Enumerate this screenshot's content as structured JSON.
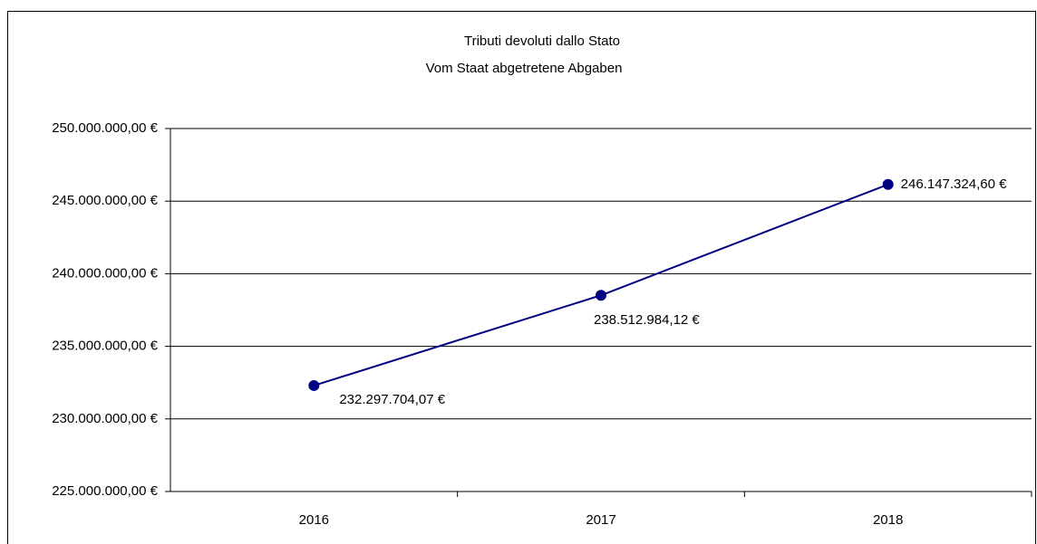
{
  "chart_data": {
    "type": "line",
    "title": "Tributi devoluti dallo Stato",
    "subtitle": "Vom Staat abgetretene Abgaben",
    "categories": [
      "2016",
      "2017",
      "2018"
    ],
    "series": [
      {
        "name": "Tributi devoluti dallo Stato",
        "color": "#000080",
        "values": [
          232297704.07,
          238512984.12,
          246147324.6
        ],
        "value_labels": [
          "232.297.704,07 €",
          "238.512.984,12 €",
          "246.147.324,60 €"
        ]
      }
    ],
    "ylim": [
      225000000,
      250000000
    ],
    "yticks": [
      {
        "value": 225000000,
        "label": "225.000.000,00 €"
      },
      {
        "value": 230000000,
        "label": "230.000.000,00 €"
      },
      {
        "value": 235000000,
        "label": "235.000.000,00 €"
      },
      {
        "value": 240000000,
        "label": "240.000.000,00 €"
      },
      {
        "value": 245000000,
        "label": "245.000.000,00 €"
      },
      {
        "value": 250000000,
        "label": "250.000.000,00 €"
      }
    ],
    "grid": true
  }
}
